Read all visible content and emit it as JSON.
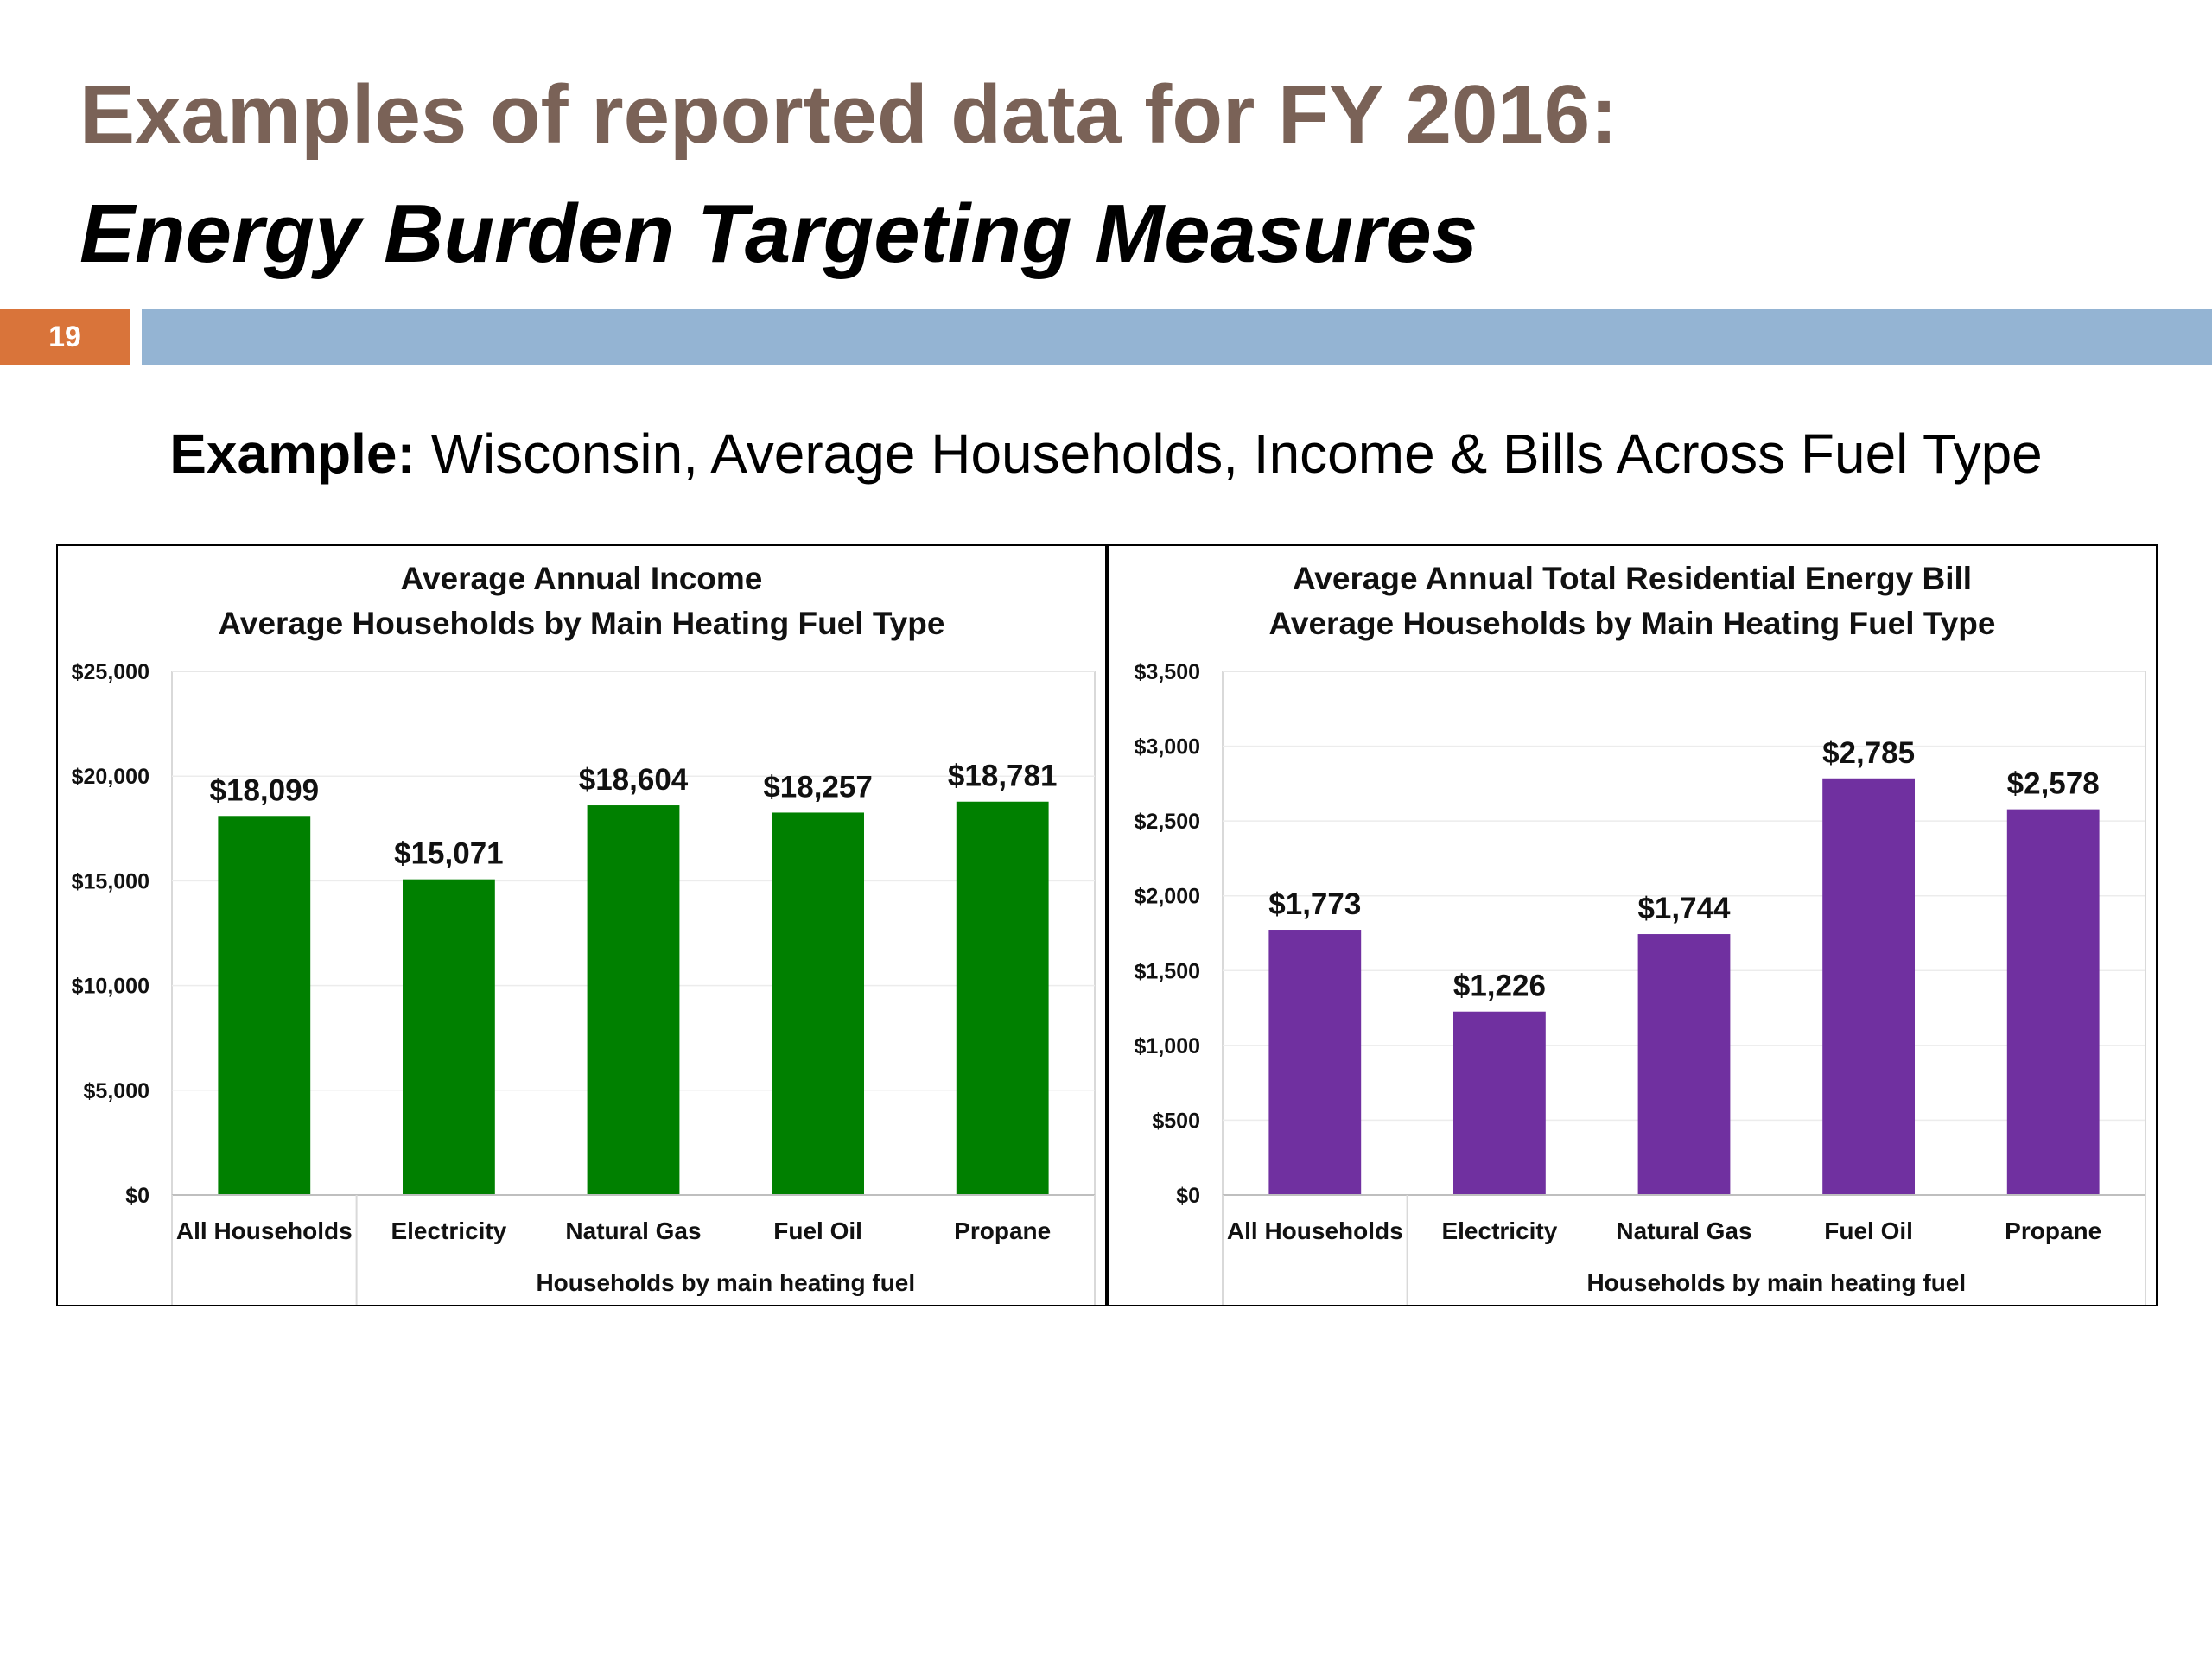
{
  "slide": {
    "title_line1": "Examples of reported data for FY 2016:",
    "title_line2": "Energy Burden Targeting Measures",
    "slide_number": "19",
    "subtitle_lead": "Example:",
    "subtitle_rest": " Wisconsin, Average Households, Income & Bills Across Fuel Type",
    "colors": {
      "title": "#7a6257",
      "slide_number_bg": "#d9743a",
      "header_bar": "#94b4d3"
    }
  },
  "chart_data": [
    {
      "type": "bar",
      "title": "Average Annual Income",
      "subtitle": "Average Households by Main Heating Fuel Type",
      "categories": [
        "All Households",
        "Electricity",
        "Natural Gas",
        "Fuel Oil",
        "Propane"
      ],
      "values": [
        18099,
        15071,
        18604,
        18257,
        18781
      ],
      "data_labels": [
        "$18,099",
        "$15,071",
        "$18,604",
        "$18,257",
        "$18,781"
      ],
      "ylim": [
        0,
        25000
      ],
      "yticks": [
        0,
        5000,
        10000,
        15000,
        20000,
        25000
      ],
      "ytick_labels": [
        "$0",
        "$5,000",
        "$10,000",
        "$15,000",
        "$20,000",
        "$25,000"
      ],
      "group_label": "Households by main heating fuel",
      "xlabel": "",
      "ylabel": "",
      "bar_color": "#008000",
      "grid": true,
      "legend": "none"
    },
    {
      "type": "bar",
      "title": "Average Annual Total Residential Energy Bill",
      "subtitle": "Average Households by Main Heating Fuel Type",
      "categories": [
        "All Households",
        "Electricity",
        "Natural Gas",
        "Fuel Oil",
        "Propane"
      ],
      "values": [
        1773,
        1226,
        1744,
        2785,
        2578
      ],
      "data_labels": [
        "$1,773",
        "$1,226",
        "$1,744",
        "$2,785",
        "$2,578"
      ],
      "ylim": [
        0,
        3500
      ],
      "yticks": [
        0,
        500,
        1000,
        1500,
        2000,
        2500,
        3000,
        3500
      ],
      "ytick_labels": [
        "$0",
        "$500",
        "$1,000",
        "$1,500",
        "$2,000",
        "$2,500",
        "$3,000",
        "$3,500"
      ],
      "group_label": "Households by main heating fuel",
      "xlabel": "",
      "ylabel": "",
      "bar_color": "#7030a0",
      "grid": true,
      "legend": "none"
    }
  ]
}
